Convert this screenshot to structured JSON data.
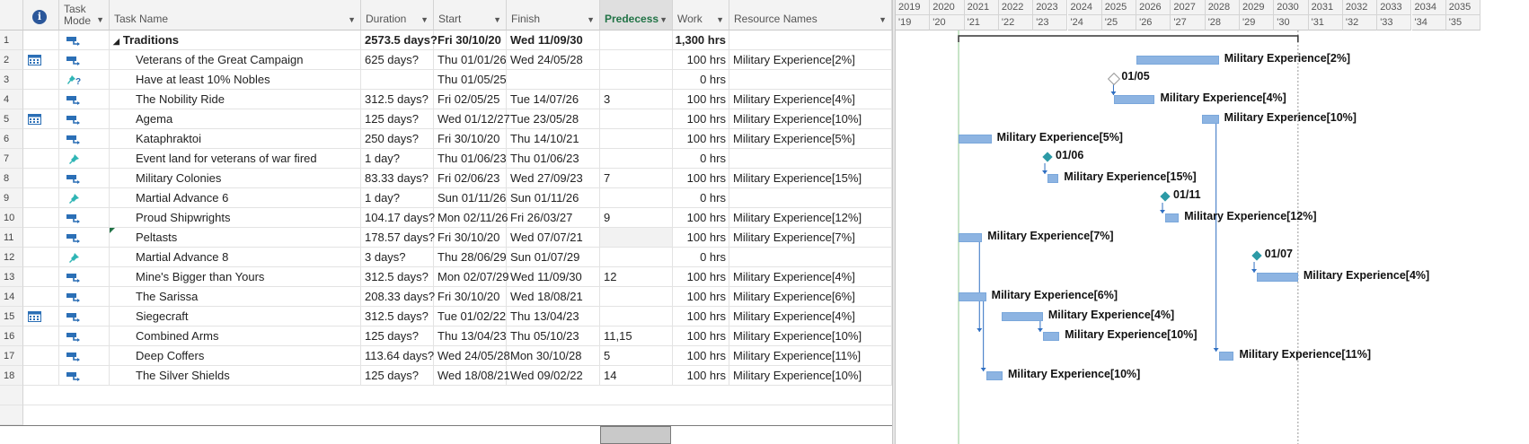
{
  "headers": {
    "info": "i",
    "task_mode": "Task Mode",
    "task_name": "Task Name",
    "duration": "Duration",
    "start": "Start",
    "finish": "Finish",
    "predecessors": "Predecess",
    "work": "Work",
    "resource_names": "Resource Names"
  },
  "timescale": {
    "years": [
      "2019",
      "2020",
      "2021",
      "2022",
      "2023",
      "2024",
      "2025",
      "2026",
      "2027",
      "2028",
      "2029",
      "2030",
      "2031",
      "2032",
      "2033",
      "2034",
      "2035"
    ],
    "abbr": [
      "'19",
      "'20",
      "'21",
      "'22",
      "'23",
      "'24",
      "'25",
      "'26",
      "'27",
      "'28",
      "'29",
      "'30",
      "'31",
      "'32",
      "'33",
      "'34",
      "'35"
    ]
  },
  "rows": [
    {
      "id": "1",
      "indicator": "",
      "mode": "auto",
      "name": "Traditions",
      "summary": true,
      "duration": "2573.5 days?",
      "start": "Fri 30/10/20",
      "finish": "Wed 11/09/30",
      "pred": "",
      "work": "1,300 hrs",
      "res": ""
    },
    {
      "id": "2",
      "indicator": "calendar",
      "mode": "auto",
      "name": "Veterans of the Great Campaign",
      "duration": "625 days?",
      "start": "Thu 01/01/26",
      "finish": "Wed 24/05/28",
      "pred": "",
      "work": "100 hrs",
      "res": "Military Experience[2%]"
    },
    {
      "id": "3",
      "indicator": "",
      "mode": "manual-q",
      "name": "Have at least 10% Nobles",
      "duration": "",
      "start": "Thu 01/05/25",
      "finish": "",
      "pred": "",
      "work": "0 hrs",
      "res": ""
    },
    {
      "id": "4",
      "indicator": "",
      "mode": "auto",
      "name": "The Nobility Ride",
      "duration": "312.5 days?",
      "start": "Fri 02/05/25",
      "finish": "Tue 14/07/26",
      "pred": "3",
      "work": "100 hrs",
      "res": "Military Experience[4%]"
    },
    {
      "id": "5",
      "indicator": "calendar",
      "mode": "auto",
      "name": "Agema",
      "duration": "125 days?",
      "start": "Wed 01/12/27",
      "finish": "Tue 23/05/28",
      "pred": "",
      "work": "100 hrs",
      "res": "Military Experience[10%]"
    },
    {
      "id": "6",
      "indicator": "",
      "mode": "auto",
      "name": "Kataphraktoi",
      "duration": "250 days?",
      "start": "Fri 30/10/20",
      "finish": "Thu 14/10/21",
      "pred": "",
      "work": "100 hrs",
      "res": "Military Experience[5%]"
    },
    {
      "id": "7",
      "indicator": "",
      "mode": "manual",
      "name": "Event land for veterans of war fired",
      "duration": "1 day?",
      "start": "Thu 01/06/23",
      "finish": "Thu 01/06/23",
      "pred": "",
      "work": "0 hrs",
      "res": ""
    },
    {
      "id": "8",
      "indicator": "",
      "mode": "auto",
      "name": "Military Colonies",
      "duration": "83.33 days?",
      "start": "Fri 02/06/23",
      "finish": "Wed 27/09/23",
      "pred": "7",
      "work": "100 hrs",
      "res": "Military Experience[15%]"
    },
    {
      "id": "9",
      "indicator": "",
      "mode": "manual",
      "name": "Martial Advance 6",
      "duration": "1 day?",
      "start": "Sun 01/11/26",
      "finish": "Sun 01/11/26",
      "pred": "",
      "work": "0 hrs",
      "res": ""
    },
    {
      "id": "10",
      "indicator": "",
      "mode": "auto",
      "name": "Proud Shipwrights",
      "duration": "104.17 days?",
      "start": "Mon 02/11/26",
      "finish": "Fri 26/03/27",
      "pred": "9",
      "work": "100 hrs",
      "res": "Military Experience[12%]"
    },
    {
      "id": "11",
      "indicator": "",
      "mode": "auto",
      "name": "Peltasts",
      "duration": "178.57 days?",
      "start": "Fri 30/10/20",
      "finish": "Wed 07/07/21",
      "pred": "",
      "work": "100 hrs",
      "res": "Military Experience[7%]"
    },
    {
      "id": "12",
      "indicator": "",
      "mode": "manual",
      "name": "Martial Advance 8",
      "duration": "3 days?",
      "start": "Thu 28/06/29",
      "finish": "Sun 01/07/29",
      "pred": "",
      "work": "0 hrs",
      "res": ""
    },
    {
      "id": "13",
      "indicator": "",
      "mode": "auto",
      "name": "Mine's Bigger than Yours",
      "duration": "312.5 days?",
      "start": "Mon 02/07/29",
      "finish": "Wed 11/09/30",
      "pred": "12",
      "work": "100 hrs",
      "res": "Military Experience[4%]"
    },
    {
      "id": "14",
      "indicator": "",
      "mode": "auto",
      "name": "The Sarissa",
      "duration": "208.33 days?",
      "start": "Fri 30/10/20",
      "finish": "Wed 18/08/21",
      "pred": "",
      "work": "100 hrs",
      "res": "Military Experience[6%]"
    },
    {
      "id": "15",
      "indicator": "calendar",
      "mode": "auto",
      "name": "Siegecraft",
      "duration": "312.5 days?",
      "start": "Tue 01/02/22",
      "finish": "Thu 13/04/23",
      "pred": "",
      "work": "100 hrs",
      "res": "Military Experience[4%]"
    },
    {
      "id": "16",
      "indicator": "",
      "mode": "auto",
      "name": "Combined Arms",
      "duration": "125 days?",
      "start": "Thu 13/04/23",
      "finish": "Thu 05/10/23",
      "pred": "11,15",
      "work": "100 hrs",
      "res": "Military Experience[10%]"
    },
    {
      "id": "17",
      "indicator": "",
      "mode": "auto",
      "name": "Deep Coffers",
      "duration": "113.64 days?",
      "start": "Wed 24/05/28",
      "finish": "Mon 30/10/28",
      "pred": "5",
      "work": "100 hrs",
      "res": "Military Experience[11%]"
    },
    {
      "id": "18",
      "indicator": "",
      "mode": "auto",
      "name": "The Silver Shields",
      "duration": "125 days?",
      "start": "Wed 18/08/21",
      "finish": "Wed 09/02/22",
      "pred": "14",
      "work": "100 hrs",
      "res": "Military Experience[10%]"
    }
  ],
  "gantt": {
    "bars": [
      {
        "row": 2,
        "label": "Military Experience[2%]"
      },
      {
        "row": 4,
        "label": "Military Experience[4%]"
      },
      {
        "row": 5,
        "label": "Military Experience[10%]"
      },
      {
        "row": 6,
        "label": "Military Experience[5%]"
      },
      {
        "row": 8,
        "label": "Military Experience[15%]"
      },
      {
        "row": 10,
        "label": "Military Experience[12%]"
      },
      {
        "row": 11,
        "label": "Military Experience[7%]"
      },
      {
        "row": 13,
        "label": "Military Experience[4%]"
      },
      {
        "row": 14,
        "label": "Military Experience[6%]"
      },
      {
        "row": 15,
        "label": "Military Experience[4%]"
      },
      {
        "row": 16,
        "label": "Military Experience[10%]"
      },
      {
        "row": 17,
        "label": "Military Experience[11%]"
      },
      {
        "row": 18,
        "label": "Military Experience[10%]"
      }
    ],
    "milestones": [
      {
        "row": 3,
        "label": "01/05",
        "outline": true
      },
      {
        "row": 7,
        "label": "01/06"
      },
      {
        "row": 9,
        "label": "01/11"
      },
      {
        "row": 12,
        "label": "01/07"
      }
    ]
  },
  "colors": {
    "bar": "#8db4e2",
    "milestone": "#2c9aa6",
    "link": "#2f6fc2",
    "accent": "#217346"
  }
}
